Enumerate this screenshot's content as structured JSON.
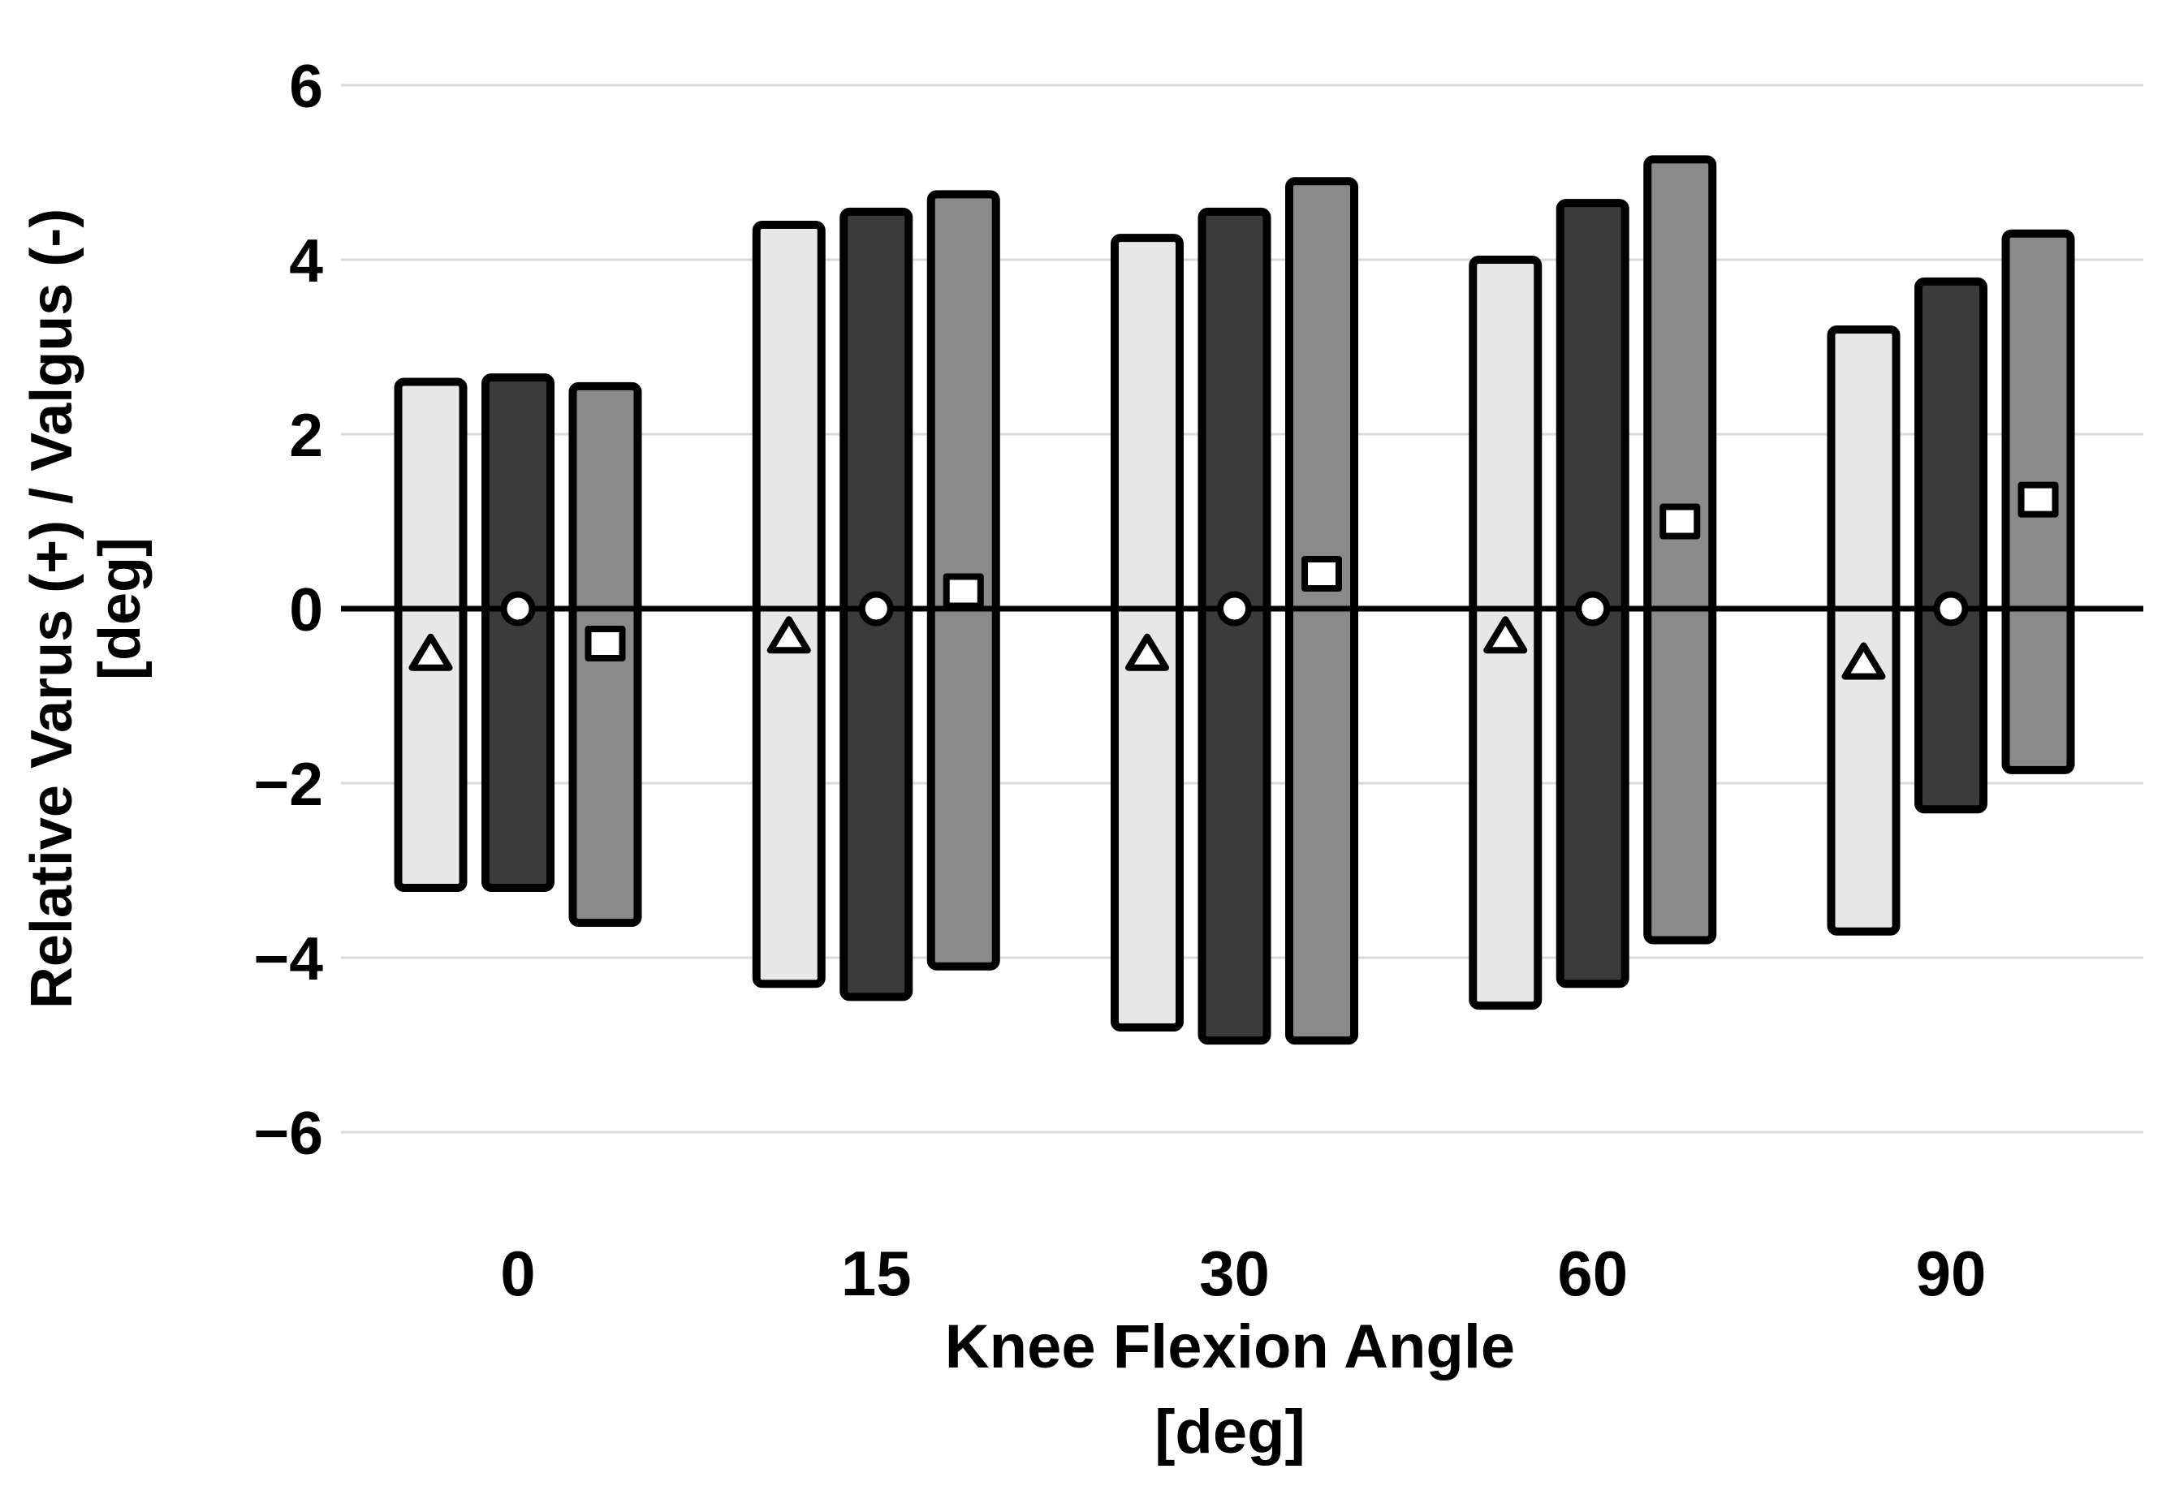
{
  "chart_data": {
    "type": "floating-bar-range-with-mean-markers",
    "title": "",
    "categories": [
      "0",
      "15",
      "30",
      "60",
      "90"
    ],
    "xlabel": "Knee Flexion Angle",
    "xlabel_unit": "[deg]",
    "ylabel": "Relative Varus (+) / Valgus (-)",
    "ylabel_unit": "[deg]",
    "y_ticks": [
      6,
      4,
      2,
      0,
      -2,
      -4,
      -6
    ],
    "ylim": [
      -6.6,
      6.5
    ],
    "grid": true,
    "legend": "none",
    "series": [
      {
        "name": "light-gray-triangle-series",
        "marker": "triangle",
        "fill": "#e7e7e7",
        "ranges": [
          [
            -3.2,
            2.6
          ],
          [
            -4.3,
            4.4
          ],
          [
            -4.8,
            4.25
          ],
          [
            -4.55,
            4.0
          ],
          [
            -3.7,
            3.2
          ]
        ],
        "means": [
          -0.5,
          -0.3,
          -0.5,
          -0.3,
          -0.6
        ]
      },
      {
        "name": "dark-gray-circle-series",
        "marker": "circle",
        "fill": "#3b3b3b",
        "ranges": [
          [
            -3.2,
            2.65
          ],
          [
            -4.45,
            4.55
          ],
          [
            -4.95,
            4.55
          ],
          [
            -4.3,
            4.65
          ],
          [
            -2.3,
            3.75
          ]
        ],
        "means": [
          0,
          0,
          0,
          0,
          0
        ]
      },
      {
        "name": "medium-gray-square-series",
        "marker": "square",
        "fill": "#8a8a8a",
        "ranges": [
          [
            -3.6,
            2.55
          ],
          [
            -4.1,
            4.75
          ],
          [
            -4.95,
            4.9
          ],
          [
            -3.8,
            5.15
          ],
          [
            -1.85,
            4.3
          ]
        ],
        "means": [
          -0.4,
          0.2,
          0.4,
          1.0,
          1.25
        ]
      }
    ],
    "colors": {
      "marker_fill": "#ffffff",
      "outline": "#000000",
      "gridline": "#d9d9d9",
      "zero_line": "#000000",
      "background": "#ffffff"
    }
  }
}
